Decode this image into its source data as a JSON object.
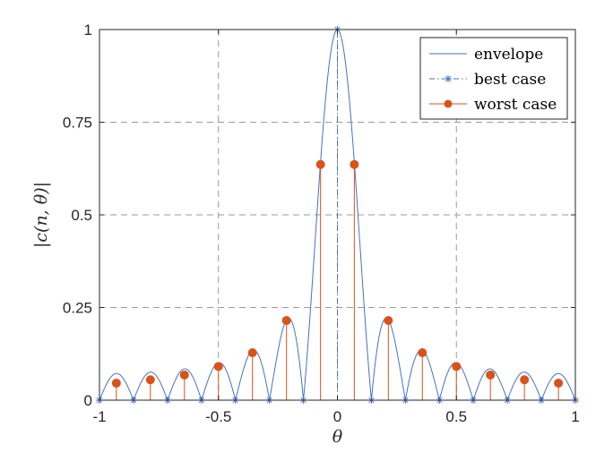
{
  "chart_data": {
    "type": "line",
    "title": "",
    "xlabel": "θ",
    "ylabel": "|c(n, θ)|",
    "xlim": [
      -1,
      1
    ],
    "ylim": [
      0,
      1
    ],
    "xticks": [
      -1,
      -0.5,
      0,
      0.5,
      1
    ],
    "xtick_labels": [
      "-1",
      "-0.5",
      "0",
      "0.5",
      "1"
    ],
    "yticks": [
      0,
      0.25,
      0.5,
      0.75,
      1
    ],
    "ytick_labels": [
      "0",
      "0.25",
      "0.5",
      "0.75",
      "1"
    ],
    "grid": true,
    "legend_position": "top-right",
    "n": 14,
    "series": [
      {
        "name": "envelope",
        "kind": "line",
        "color": "#4472C4",
        "formula": "|sin(n*pi*theta/2) / (n*sin(pi*theta/2))|"
      },
      {
        "name": "best case",
        "kind": "stem-asterisk",
        "color": "#4472C4",
        "x": [
          -1,
          -0.857,
          -0.714,
          -0.571,
          -0.429,
          -0.286,
          -0.143,
          0,
          0.143,
          0.286,
          0.429,
          0.571,
          0.714,
          0.857,
          1
        ],
        "y": [
          0,
          0,
          0,
          0,
          0,
          0,
          0,
          1,
          0,
          0,
          0,
          0,
          0,
          0,
          0
        ]
      },
      {
        "name": "worst case",
        "kind": "stem-circle",
        "color": "#D95319",
        "x": [
          -0.929,
          -0.786,
          -0.643,
          -0.5,
          -0.357,
          -0.214,
          -0.071,
          0.071,
          0.214,
          0.357,
          0.5,
          0.643,
          0.786,
          0.929
        ],
        "y": [
          0.046,
          0.055,
          0.068,
          0.091,
          0.128,
          0.215,
          0.636,
          0.636,
          0.215,
          0.128,
          0.091,
          0.068,
          0.055,
          0.046
        ]
      }
    ]
  }
}
